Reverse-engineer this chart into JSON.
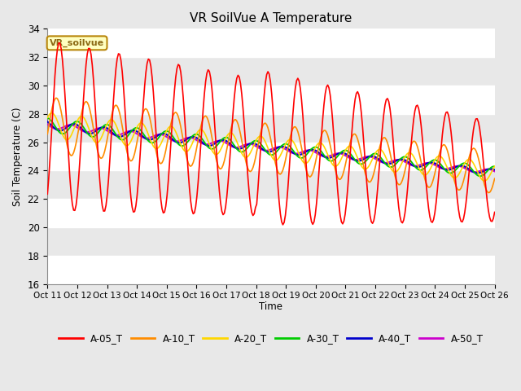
{
  "title": "VR SoilVue A Temperature",
  "ylabel": "Soil Temperature (C)",
  "xlabel": "Time",
  "annotation": "VR_soilvue",
  "ylim": [
    16,
    34
  ],
  "yticks": [
    16,
    18,
    20,
    22,
    24,
    26,
    28,
    30,
    32,
    34
  ],
  "x_labels": [
    "Oct 11",
    "Oct 12",
    "Oct 13",
    "Oct 14",
    "Oct 15",
    "Oct 16",
    "Oct 17",
    "Oct 18",
    "Oct 19",
    "Oct 20",
    "Oct 21",
    "Oct 22",
    "Oct 23",
    "Oct 24",
    "Oct 25",
    "Oct 26"
  ],
  "series_colors": {
    "A-05_T": "#FF0000",
    "A-10_T": "#FF8C00",
    "A-20_T": "#FFD700",
    "A-30_T": "#00CC00",
    "A-40_T": "#0000CC",
    "A-50_T": "#CC00CC"
  },
  "bg_color": "#E8E8E8",
  "stripe_colors": [
    "#DCDCDC",
    "#F0F0F0"
  ],
  "grid_color": "#FFFFFF"
}
